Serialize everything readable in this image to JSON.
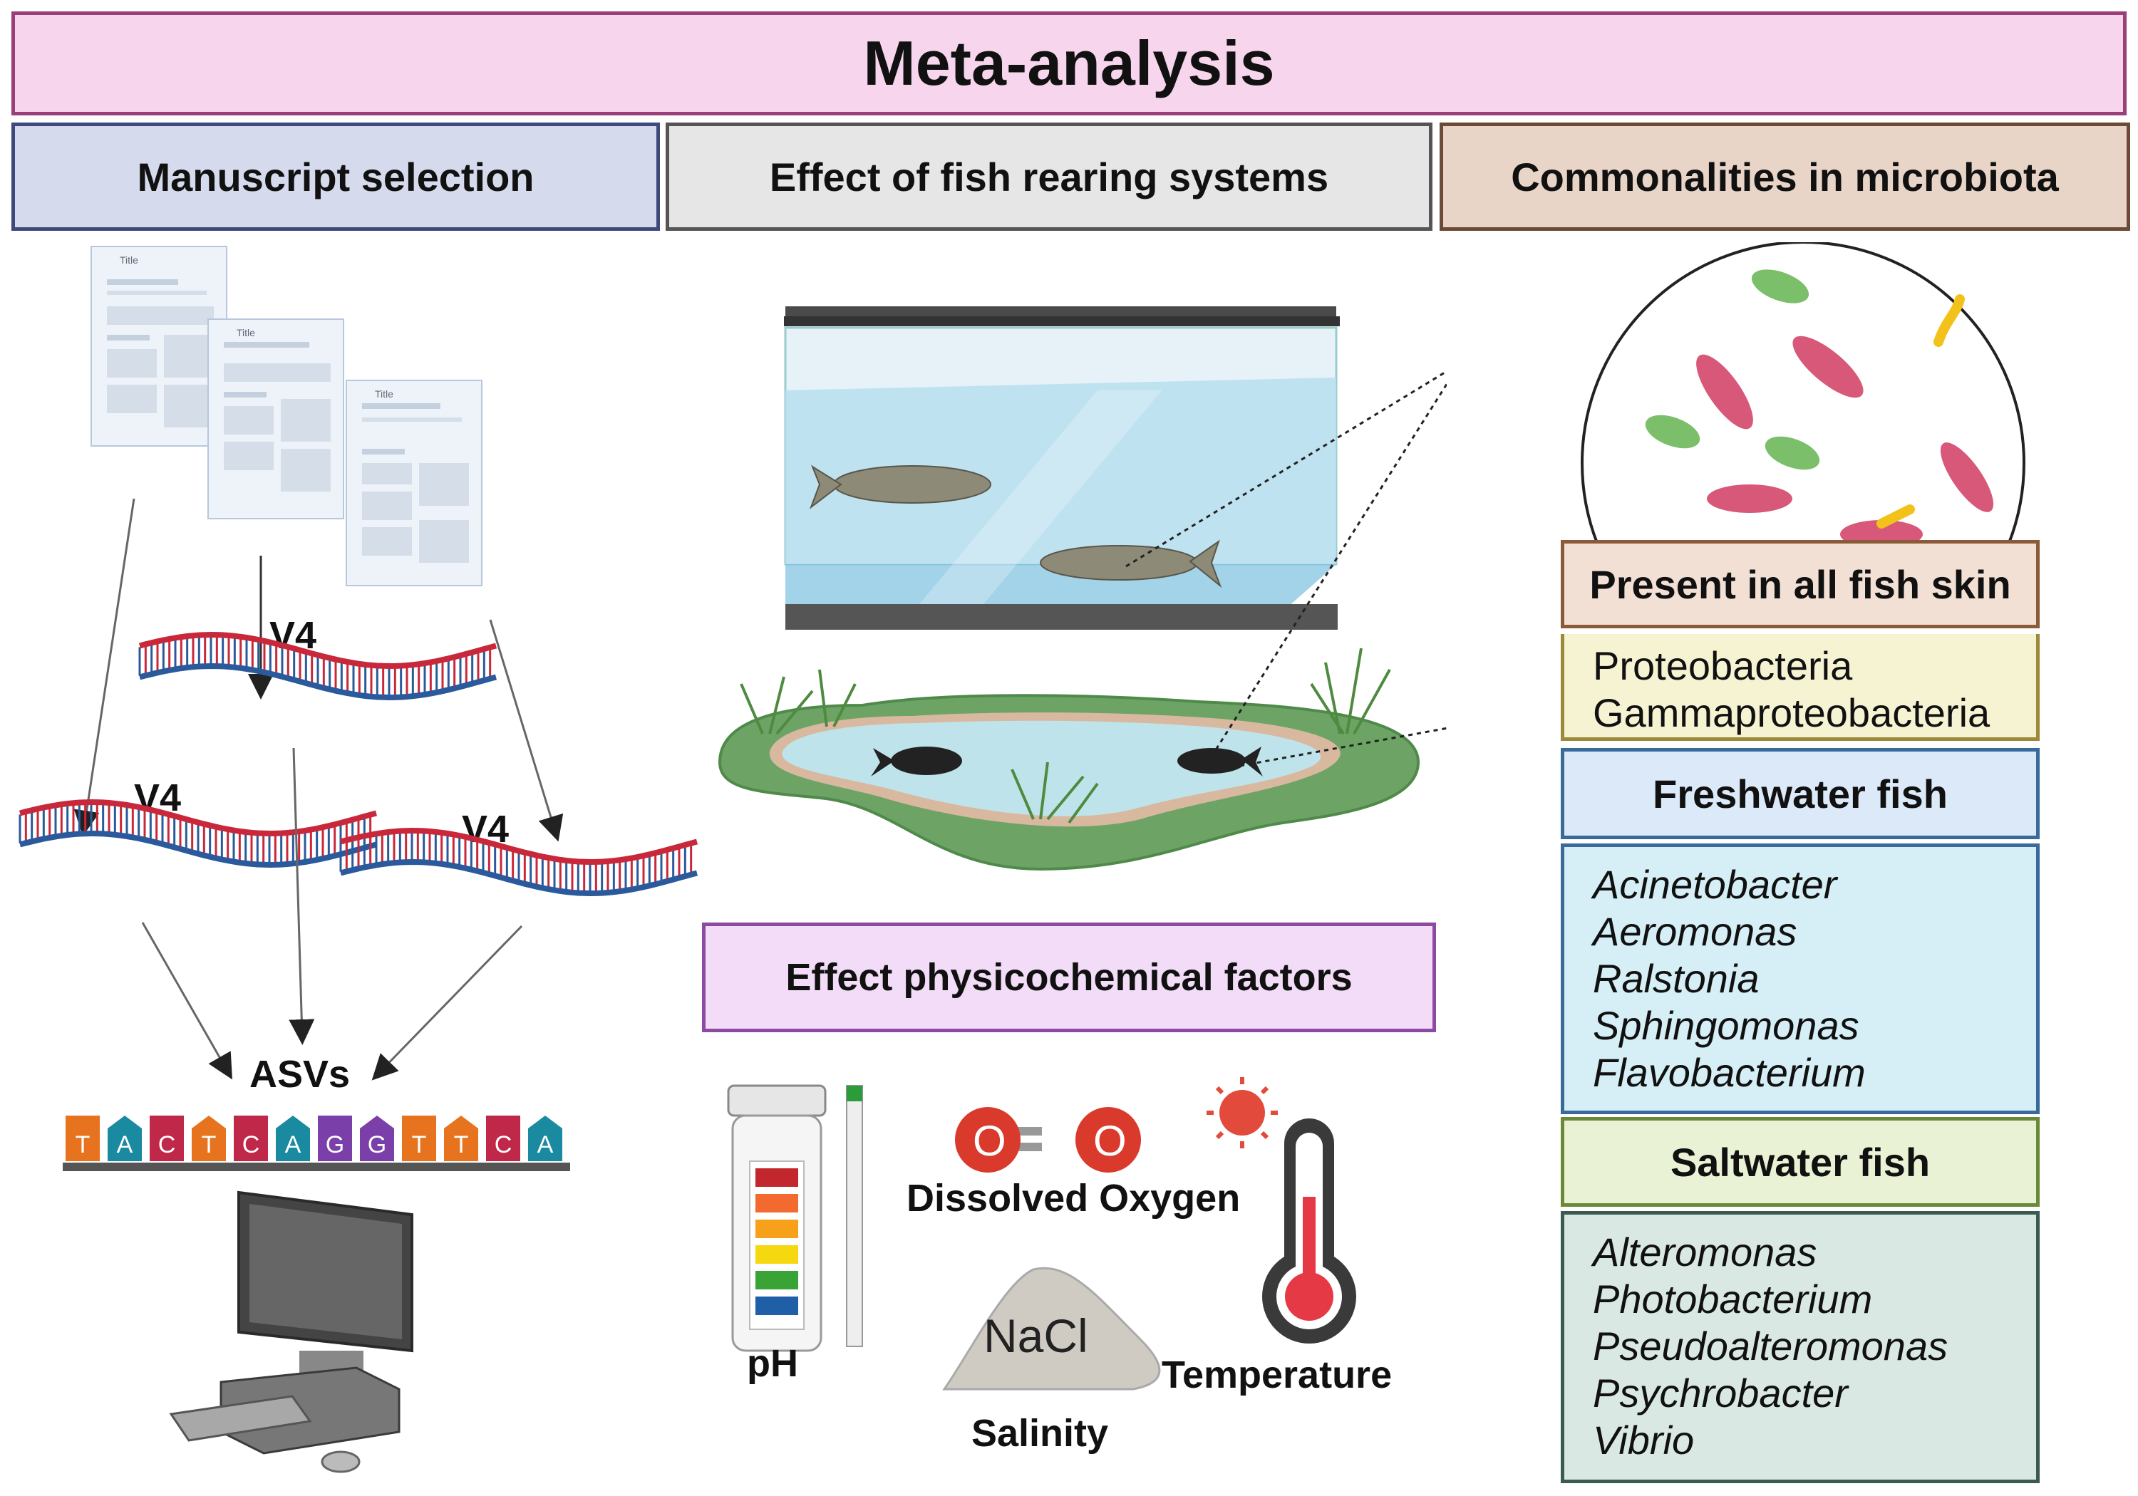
{
  "title": "Meta-analysis",
  "headers": {
    "manuscript": "Manuscript selection",
    "rearing": "Effect of fish rearing systems",
    "commonalities": "Commonalities in microbiota"
  },
  "documents": {
    "title_label": "Title"
  },
  "dna": {
    "region_label": "V4",
    "asv_label": "ASVs"
  },
  "asv_sequence": [
    "T",
    "A",
    "C",
    "T",
    "C",
    "A",
    "G",
    "G",
    "T",
    "T",
    "C",
    "A"
  ],
  "physicochemical": {
    "title": "Effect physicochemical factors",
    "ph": "pH",
    "oxygen": "Dissolved Oxygen",
    "oxygen_symbol": "O",
    "salinity": "Salinity",
    "salt": "NaCl",
    "temperature": "Temperature"
  },
  "skin": {
    "title": "Present in all fish skin",
    "items": [
      "Proteobacteria",
      "Gammaproteobacteria"
    ]
  },
  "freshwater": {
    "title": "Freshwater fish",
    "items": [
      "Acinetobacter",
      "Aeromonas",
      "Ralstonia",
      "Sphingomonas",
      "Flavobacterium"
    ]
  },
  "saltwater": {
    "title": "Saltwater fish",
    "items": [
      "Alteromonas",
      "Photobacterium",
      "Pseudoalteromonas",
      "Psychrobacter",
      "Vibrio"
    ]
  },
  "colors": {
    "T": "#e8731f",
    "A": "#1a8aa0",
    "C": "#c0284a",
    "G": "#7a3fa8",
    "dna_red": "#c8283a",
    "dna_blue": "#2a5a9c"
  }
}
